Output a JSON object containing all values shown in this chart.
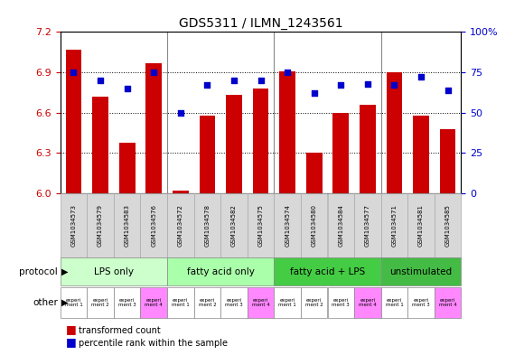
{
  "title": "GDS5311 / ILMN_1243561",
  "samples": [
    "GSM1034573",
    "GSM1034579",
    "GSM1034583",
    "GSM1034576",
    "GSM1034572",
    "GSM1034578",
    "GSM1034582",
    "GSM1034575",
    "GSM1034574",
    "GSM1034580",
    "GSM1034584",
    "GSM1034577",
    "GSM1034571",
    "GSM1034581",
    "GSM1034585"
  ],
  "bar_values": [
    7.07,
    6.72,
    6.38,
    6.97,
    6.02,
    6.58,
    6.73,
    6.78,
    6.91,
    6.3,
    6.6,
    6.66,
    6.9,
    6.58,
    6.48
  ],
  "dot_values": [
    75,
    70,
    65,
    75,
    50,
    67,
    70,
    70,
    75,
    62,
    67,
    68,
    67,
    72,
    64
  ],
  "ylim_left": [
    6.0,
    7.2
  ],
  "ylim_right": [
    0,
    100
  ],
  "yticks_left": [
    6.0,
    6.3,
    6.6,
    6.9,
    7.2
  ],
  "yticks_right": [
    0,
    25,
    50,
    75,
    100
  ],
  "bar_color": "#cc0000",
  "dot_color": "#0000cc",
  "bar_bottom": 6.0,
  "protocols": [
    {
      "label": "LPS only",
      "start": 0,
      "end": 3,
      "color": "#ccffcc"
    },
    {
      "label": "fatty acid only",
      "start": 4,
      "end": 7,
      "color": "#aaffaa"
    },
    {
      "label": "fatty acid + LPS",
      "start": 8,
      "end": 11,
      "color": "#44cc44"
    },
    {
      "label": "unstimulated",
      "start": 12,
      "end": 14,
      "color": "#44bb44"
    }
  ],
  "other_cells": [
    {
      "label": "experi\nment 1",
      "col": 0,
      "color": "#ffffff"
    },
    {
      "label": "experi\nment 2",
      "col": 1,
      "color": "#ffffff"
    },
    {
      "label": "experi\nment 3",
      "col": 2,
      "color": "#ffffff"
    },
    {
      "label": "experi\nment 4",
      "col": 3,
      "color": "#ff88ff"
    },
    {
      "label": "experi\nment 1",
      "col": 4,
      "color": "#ffffff"
    },
    {
      "label": "experi\nment 2",
      "col": 5,
      "color": "#ffffff"
    },
    {
      "label": "experi\nment 3",
      "col": 6,
      "color": "#ffffff"
    },
    {
      "label": "experi\nment 4",
      "col": 7,
      "color": "#ff88ff"
    },
    {
      "label": "experi\nment 1",
      "col": 8,
      "color": "#ffffff"
    },
    {
      "label": "experi\nment 2",
      "col": 9,
      "color": "#ffffff"
    },
    {
      "label": "experi\nment 3",
      "col": 10,
      "color": "#ffffff"
    },
    {
      "label": "experi\nment 4",
      "col": 11,
      "color": "#ff88ff"
    },
    {
      "label": "experi\nment 1",
      "col": 12,
      "color": "#ffffff"
    },
    {
      "label": "experi\nment 3",
      "col": 13,
      "color": "#ffffff"
    },
    {
      "label": "experi\nment 4",
      "col": 14,
      "color": "#ff88ff"
    }
  ],
  "legend_bar_label": "transformed count",
  "legend_dot_label": "percentile rank within the sample",
  "tick_color_left": "#cc0000",
  "tick_color_right": "#0000cc",
  "background_color": "#ffffff",
  "sample_bg_color": "#d8d8d8",
  "sample_border_color": "#aaaaaa",
  "proto_border_color": "#888888"
}
